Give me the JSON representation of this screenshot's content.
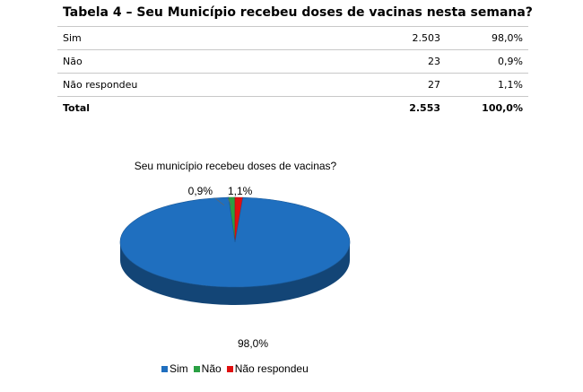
{
  "title": "Tabela 4 – Seu Município recebeu doses de vacinas nesta semana?",
  "table": {
    "rows": [
      {
        "label": "Sim",
        "count": "2.503",
        "pct": "98,0%"
      },
      {
        "label": "Não",
        "count": "23",
        "pct": "0,9%"
      },
      {
        "label": "Não respondeu",
        "count": "27",
        "pct": "1,1%"
      }
    ],
    "total": {
      "label": "Total",
      "count": "2.553",
      "pct": "100,0%"
    }
  },
  "chart_data": {
    "type": "pie",
    "title": "Seu município recebeu doses de vacinas?",
    "categories": [
      "Sim",
      "Não",
      "Não respondeu"
    ],
    "values": [
      98.0,
      0.9,
      1.1
    ],
    "data_labels": [
      "98,0%",
      "0,9%",
      "1,1%"
    ],
    "colors": [
      "#1f6fbf",
      "#2aa043",
      "#e01010"
    ],
    "legend_position": "bottom",
    "style": "3d"
  }
}
